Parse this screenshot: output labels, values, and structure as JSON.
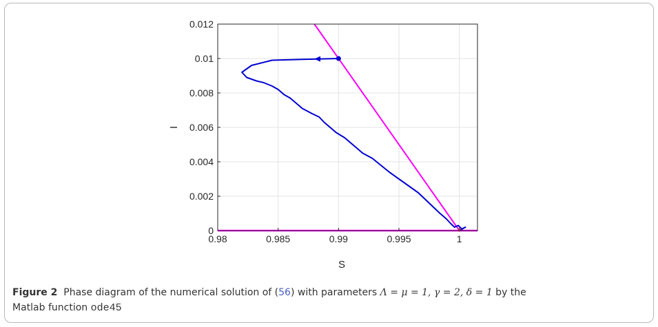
{
  "figure": {
    "label": "Figure 2",
    "caption_pre": "Phase diagram of the numerical solution of (",
    "caption_ref": "56",
    "caption_mid": ") with parameters ",
    "params": "Λ = μ = 1, γ = 2, δ = 1",
    "caption_post": " by the",
    "caption_line2_pre": "Matlab function ",
    "function_name": "ode45"
  },
  "colors": {
    "trajectory": "#0000d0",
    "line": "#ff00ff",
    "equilibrium": "#ff3b3b",
    "grid": "#e3e3e3",
    "axis": "#262626"
  },
  "chart_data": {
    "type": "line",
    "xlabel": "S",
    "ylabel": "I",
    "xlim": [
      0.98,
      1.0015
    ],
    "ylim": [
      0,
      0.012
    ],
    "xticks": [
      0.98,
      0.985,
      0.99,
      0.995,
      1.0
    ],
    "xtick_labels": [
      "0.98",
      "0.985",
      "0.99",
      "0.995",
      "1"
    ],
    "yticks": [
      0,
      0.002,
      0.004,
      0.006,
      0.008,
      0.01,
      0.012
    ],
    "ytick_labels": [
      "0",
      "0.002",
      "0.004",
      "0.006",
      "0.008",
      "0.01",
      "0.012"
    ],
    "grid": true,
    "series": [
      {
        "role": "trajectory",
        "points": [
          [
            0.99,
            0.01
          ],
          [
            0.987,
            0.00995
          ],
          [
            0.9845,
            0.0099
          ],
          [
            0.9828,
            0.0096
          ],
          [
            0.982,
            0.0092
          ],
          [
            0.9824,
            0.0089
          ],
          [
            0.9832,
            0.0087
          ],
          [
            0.9838,
            0.0086
          ],
          [
            0.9845,
            0.0084
          ],
          [
            0.985,
            0.0082
          ],
          [
            0.9855,
            0.0079
          ],
          [
            0.986,
            0.0077
          ],
          [
            0.9865,
            0.0074
          ],
          [
            0.987,
            0.0071
          ],
          [
            0.9878,
            0.0068
          ],
          [
            0.9884,
            0.0066
          ],
          [
            0.9888,
            0.0063
          ],
          [
            0.9893,
            0.006
          ],
          [
            0.9898,
            0.0057
          ],
          [
            0.9905,
            0.0054
          ],
          [
            0.991,
            0.0051
          ],
          [
            0.9915,
            0.0048
          ],
          [
            0.992,
            0.0045
          ],
          [
            0.9928,
            0.0042
          ],
          [
            0.9935,
            0.0038
          ],
          [
            0.9942,
            0.0034
          ],
          [
            0.995,
            0.003
          ],
          [
            0.9958,
            0.0026
          ],
          [
            0.9966,
            0.0022
          ],
          [
            0.9972,
            0.0018
          ],
          [
            0.9978,
            0.0014
          ],
          [
            0.9984,
            0.001
          ],
          [
            0.9989,
            0.0007
          ],
          [
            0.9993,
            0.0004
          ],
          [
            0.9996,
            0.0002
          ],
          [
            0.9999,
            0.0003
          ],
          [
            1.0002,
            0.0001
          ],
          [
            1.0005,
            0.0002
          ],
          [
            1.0,
            0.0
          ]
        ]
      },
      {
        "role": "line",
        "points": [
          [
            0.988,
            0.012
          ],
          [
            1.0,
            0.0
          ]
        ]
      },
      {
        "role": "axis-line",
        "points": [
          [
            0.98,
            0.0
          ],
          [
            1.0015,
            0.0
          ]
        ]
      }
    ],
    "initial_point": [
      0.99,
      0.01
    ],
    "equilibrium_point": [
      1.0,
      0.0
    ]
  }
}
